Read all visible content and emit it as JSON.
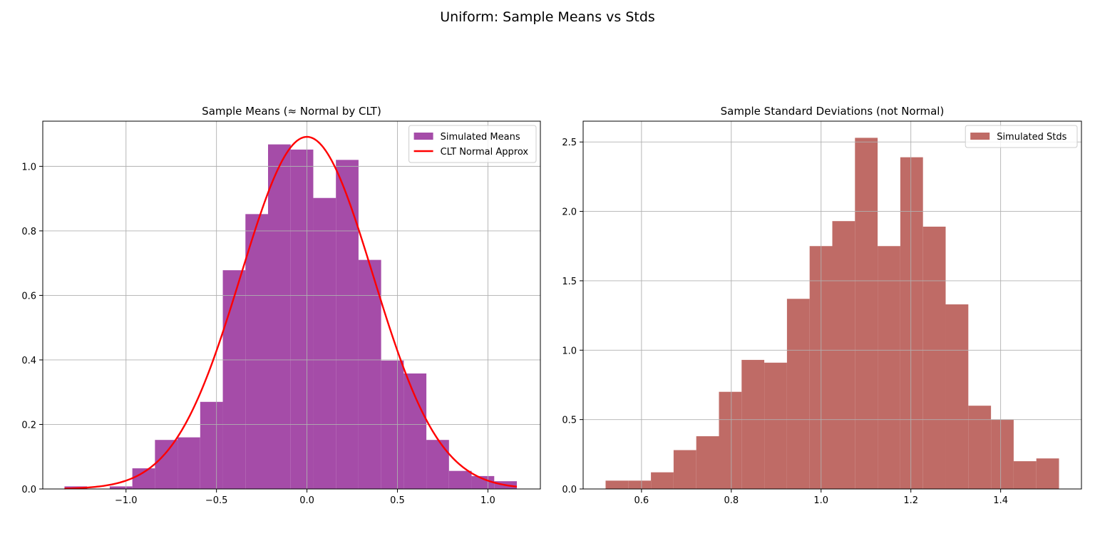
{
  "figure": {
    "suptitle": "Uniform: Sample Means vs Stds"
  },
  "chart_data": [
    {
      "type": "bar",
      "title": "Sample Means (≈ Normal by CLT)",
      "xlabel": "",
      "ylabel": "",
      "xlim": [
        -1.46,
        1.29
      ],
      "ylim": [
        0,
        1.14
      ],
      "grid": true,
      "legend_position": "top-right",
      "x_ticks": [
        -1.0,
        -0.5,
        0.0,
        0.5,
        1.0
      ],
      "x_tick_labels": [
        "−1.0",
        "−0.5",
        "0.0",
        "0.5",
        "1.0"
      ],
      "y_ticks": [
        0.0,
        0.2,
        0.4,
        0.6,
        0.8,
        1.0
      ],
      "y_tick_labels": [
        "0.0",
        "0.2",
        "0.4",
        "0.6",
        "0.8",
        "1.0"
      ],
      "histogram": {
        "name": "Simulated Means",
        "color": "#a54ca8",
        "bin_edges": [
          -1.34,
          -1.215,
          -1.09,
          -0.965,
          -0.84,
          -0.715,
          -0.59,
          -0.465,
          -0.34,
          -0.215,
          -0.09,
          0.035,
          0.16,
          0.285,
          0.41,
          0.535,
          0.66,
          0.785,
          0.91,
          1.035,
          1.16
        ],
        "values": [
          0.008,
          0.0,
          0.008,
          0.064,
          0.152,
          0.16,
          0.27,
          0.678,
          0.852,
          1.068,
          1.052,
          0.902,
          1.02,
          0.71,
          0.398,
          0.358,
          0.152,
          0.056,
          0.04,
          0.024
        ]
      },
      "curve": {
        "name": "CLT Normal Approx",
        "color": "#ff0000",
        "mean": 0.0,
        "std": 0.3655,
        "x_range": [
          -1.34,
          1.16
        ]
      }
    },
    {
      "type": "bar",
      "title": "Sample Standard Deviations (not Normal)",
      "xlabel": "",
      "ylabel": "",
      "xlim": [
        0.47,
        1.58
      ],
      "ylim": [
        0,
        2.65
      ],
      "grid": true,
      "legend_position": "top-right",
      "x_ticks": [
        0.6,
        0.8,
        1.0,
        1.2,
        1.4
      ],
      "x_tick_labels": [
        "0.6",
        "0.8",
        "1.0",
        "1.2",
        "1.4"
      ],
      "y_ticks": [
        0.0,
        0.5,
        1.0,
        1.5,
        2.0,
        2.5
      ],
      "y_tick_labels": [
        "0.0",
        "0.5",
        "1.0",
        "1.5",
        "2.0",
        "2.5"
      ],
      "histogram": {
        "name": "Simulated Stds",
        "color": "#bf6b66",
        "bin_edges": [
          0.52,
          0.5705,
          0.621,
          0.6715,
          0.722,
          0.7725,
          0.823,
          0.8735,
          0.924,
          0.9745,
          1.025,
          1.0755,
          1.126,
          1.1765,
          1.227,
          1.2775,
          1.328,
          1.3785,
          1.429,
          1.4795,
          1.53
        ],
        "values": [
          0.06,
          0.06,
          0.12,
          0.28,
          0.38,
          0.7,
          0.93,
          0.91,
          1.37,
          1.75,
          1.93,
          2.53,
          1.75,
          2.39,
          1.89,
          1.33,
          0.6,
          0.5,
          0.2,
          0.22
        ]
      }
    }
  ]
}
